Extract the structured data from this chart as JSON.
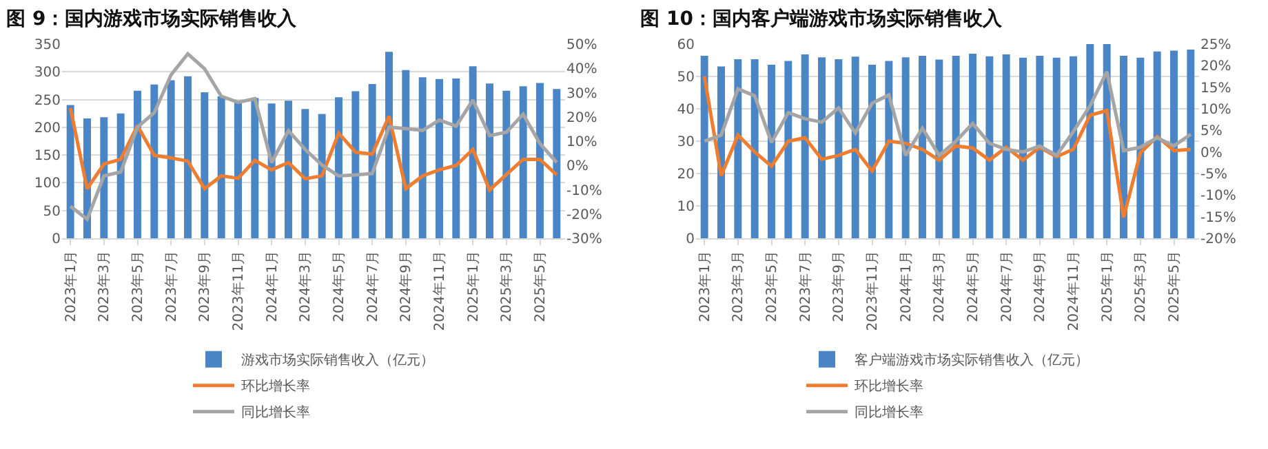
{
  "chart_data": [
    {
      "type": "bar",
      "title": "图 9：国内游戏市场实际销售收入",
      "categories": [
        "2023年1月",
        null,
        "2023年3月",
        null,
        "2023年5月",
        null,
        "2023年7月",
        null,
        "2023年9月",
        null,
        "2023年11月",
        null,
        "2024年1月",
        null,
        "2024年3月",
        null,
        "2024年5月",
        null,
        "2024年7月",
        null,
        "2024年9月",
        null,
        "2024年11月",
        null,
        "2025年1月",
        null,
        "2025年3月",
        null,
        "2025年5月",
        null
      ],
      "series": [
        {
          "name": "游戏市场实际销售收入（亿元）",
          "color": "#4a86c5",
          "values": [
            240,
            216,
            218,
            225,
            266,
            277,
            285,
            292,
            263,
            256,
            245,
            253,
            243,
            248,
            233,
            224,
            254,
            265,
            278,
            336,
            303,
            290,
            287,
            288,
            310,
            279,
            266,
            274,
            280,
            269
          ]
        },
        {
          "name": "环比增长率",
          "type": "line",
          "axis": "y2",
          "color": "#ed7d31",
          "values": [
            23.6,
            -9.6,
            0.6,
            2.5,
            16.4,
            4.1,
            3.1,
            1.8,
            -9.6,
            -4.3,
            -5.3,
            2.1,
            -1.8,
            1.2,
            -5.5,
            -4.3,
            13.3,
            5.5,
            4.7,
            20.3,
            -9.6,
            -4.3,
            -1.8,
            0,
            6.6,
            -10.1,
            -3.7,
            2.5,
            2.5,
            -3.9
          ]
        },
        {
          "name": "同比增长率",
          "type": "line",
          "axis": "y2",
          "color": "#a5a5a5",
          "values": [
            -16.8,
            -22.2,
            -4.3,
            -2.7,
            15.8,
            21.7,
            37.3,
            46,
            39.8,
            28.5,
            26,
            27.5,
            1.2,
            14.4,
            6.6,
            0.2,
            -4.3,
            -3.9,
            -3.3,
            15.8,
            15.2,
            14.4,
            18.7,
            16.2,
            26.9,
            12.3,
            13.7,
            21.1,
            9,
            1.2
          ]
        }
      ],
      "ylim": [
        0,
        350
      ],
      "yticks": [
        0,
        50,
        100,
        150,
        200,
        250,
        300,
        350
      ],
      "y2lim": [
        -30,
        50
      ],
      "y2ticks": [
        {
          "value": -30,
          "label": "-30%"
        },
        {
          "value": -20,
          "label": "-20%"
        },
        {
          "value": -10,
          "label": "-10%"
        },
        {
          "value": 0,
          "label": "0%"
        },
        {
          "value": 10,
          "label": "10%"
        },
        {
          "value": 20,
          "label": "20%"
        },
        {
          "value": 30,
          "label": "30%"
        },
        {
          "value": 40,
          "label": "40%"
        },
        {
          "value": 50,
          "label": "50%"
        }
      ],
      "grid": "y",
      "legend": "bottom",
      "marker": "none",
      "line_style": "solid"
    },
    {
      "type": "bar",
      "title": "图 10：国内客户端游戏市场实际销售收入",
      "categories": [
        "2023年1月",
        null,
        "2023年3月",
        null,
        "2023年5月",
        null,
        "2023年7月",
        null,
        "2023年9月",
        null,
        "2023年11月",
        null,
        "2024年1月",
        null,
        "2024年3月",
        null,
        "2024年5月",
        null,
        "2024年7月",
        null,
        "2024年9月",
        null,
        "2024年11月",
        null,
        "2025年1月",
        null,
        "2025年3月",
        null,
        "2025年5月",
        null
      ],
      "series": [
        {
          "name": "客户端游戏市场实际销售收入（亿元）",
          "color": "#4a86c5",
          "values": [
            56.4,
            53.1,
            55.3,
            55.3,
            53.6,
            54.8,
            56.8,
            55.9,
            55.3,
            56.1,
            53.6,
            54.8,
            55.9,
            56.4,
            55.2,
            56.4,
            57,
            56.2,
            56.8,
            55.8,
            56.4,
            55.8,
            56.2,
            60,
            60,
            56.4,
            55.8,
            57.7,
            58,
            58.3
          ]
        },
        {
          "name": "环比增长率",
          "type": "line",
          "axis": "y2",
          "color": "#ed7d31",
          "values": [
            17.5,
            -5.5,
            3.9,
            0,
            -3.3,
            2.5,
            3.3,
            -1.7,
            -0.8,
            0.6,
            -4.4,
            2.5,
            2,
            0.6,
            -1.9,
            1.4,
            0.9,
            -1.9,
            1.1,
            -1.9,
            1.1,
            -1.1,
            0.6,
            8.5,
            9.6,
            -15.1,
            -0.2,
            3.6,
            0.3,
            0.6
          ]
        },
        {
          "name": "同比增长率",
          "type": "line",
          "axis": "y2",
          "color": "#a5a5a5",
          "values": [
            2.5,
            3.9,
            14.6,
            13,
            2.2,
            9.1,
            7.7,
            6.9,
            10.2,
            4.4,
            11.3,
            13.2,
            -0.8,
            5.5,
            -0.8,
            2.5,
            6.6,
            2,
            0.6,
            0,
            1.4,
            -0.8,
            4.7,
            10.7,
            18.6,
            0.3,
            1.1,
            3.3,
            1.4,
            4.1
          ]
        }
      ],
      "ylim": [
        0,
        60
      ],
      "yticks": [
        0,
        10,
        20,
        30,
        40,
        50,
        60
      ],
      "y2lim": [
        -20,
        25
      ],
      "y2ticks": [
        {
          "value": -20,
          "label": "-20%"
        },
        {
          "value": -15,
          "label": "-15%"
        },
        {
          "value": -10,
          "label": "-10%"
        },
        {
          "value": -5,
          "label": "-5%"
        },
        {
          "value": 0,
          "label": "0%"
        },
        {
          "value": 5,
          "label": "5%"
        },
        {
          "value": 10,
          "label": "10%"
        },
        {
          "value": 15,
          "label": "15%"
        },
        {
          "value": 20,
          "label": "20%"
        },
        {
          "value": 25,
          "label": "25%"
        }
      ],
      "grid": "y",
      "legend": "bottom",
      "marker": "none",
      "line_style": "solid"
    }
  ]
}
